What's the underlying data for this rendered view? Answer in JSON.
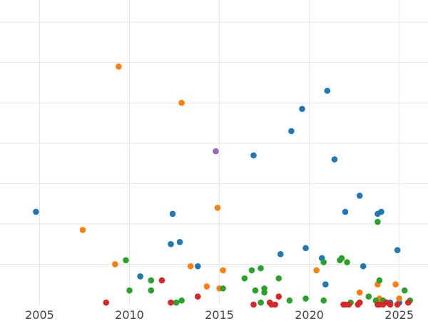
{
  "chart_data": {
    "type": "scatter",
    "title": "",
    "xlabel": "",
    "ylabel": "",
    "xlim": [
      2002.8,
      2026.6
    ],
    "ylim": [
      0,
      7.55
    ],
    "x_ticks": [
      {
        "value": 2005,
        "label": "2005"
      },
      {
        "value": 2010,
        "label": "2010"
      },
      {
        "value": 2015,
        "label": "2015"
      },
      {
        "value": 2020,
        "label": "2020"
      },
      {
        "value": 2025,
        "label": "2025"
      }
    ],
    "y_gridlines": [
      1,
      2,
      3,
      4,
      5,
      6,
      7
    ],
    "grid": true,
    "legend": null,
    "series": [
      {
        "color": "#1f77b4",
        "points": [
          [
            2004.8,
            2.3
          ],
          [
            2010.6,
            0.7
          ],
          [
            2012.3,
            1.5
          ],
          [
            2012.4,
            2.25
          ],
          [
            2012.8,
            1.55
          ],
          [
            2013.8,
            0.95
          ],
          [
            2016.9,
            3.7
          ],
          [
            2018.4,
            1.25
          ],
          [
            2019.0,
            4.3
          ],
          [
            2019.6,
            4.85
          ],
          [
            2019.8,
            1.4
          ],
          [
            2020.7,
            1.15
          ],
          [
            2020.9,
            0.5
          ],
          [
            2021.0,
            5.3
          ],
          [
            2021.4,
            3.6
          ],
          [
            2022.0,
            2.3
          ],
          [
            2022.8,
            2.7
          ],
          [
            2023.0,
            0.95
          ],
          [
            2023.8,
            2.25
          ],
          [
            2024.0,
            2.3
          ],
          [
            2024.9,
            1.35
          ],
          [
            2024.5,
            0.05
          ],
          [
            2025.0,
            0.05
          ]
        ]
      },
      {
        "color": "#ff7f0e",
        "points": [
          [
            2007.4,
            1.85
          ],
          [
            2009.2,
            1.0
          ],
          [
            2009.4,
            5.9
          ],
          [
            2012.9,
            5.0
          ],
          [
            2013.4,
            0.95
          ],
          [
            2014.3,
            0.45
          ],
          [
            2014.9,
            2.4
          ],
          [
            2015.0,
            0.4
          ],
          [
            2015.2,
            0.85
          ],
          [
            2020.4,
            0.85
          ],
          [
            2022.8,
            0.3
          ],
          [
            2023.8,
            0.5
          ],
          [
            2023.9,
            0.15
          ],
          [
            2024.8,
            0.5
          ],
          [
            2025.0,
            0.15
          ]
        ]
      },
      {
        "color": "#2ca02c",
        "points": [
          [
            2009.8,
            1.1
          ],
          [
            2010.0,
            0.35
          ],
          [
            2011.2,
            0.6
          ],
          [
            2011.2,
            0.35
          ],
          [
            2012.6,
            0.05
          ],
          [
            2012.9,
            0.1
          ],
          [
            2015.2,
            0.4
          ],
          [
            2016.4,
            0.65
          ],
          [
            2016.8,
            0.85
          ],
          [
            2017.0,
            0.35
          ],
          [
            2017.3,
            0.05
          ],
          [
            2017.3,
            0.9
          ],
          [
            2017.5,
            0.4
          ],
          [
            2017.5,
            0.3
          ],
          [
            2018.3,
            0.65
          ],
          [
            2018.9,
            0.1
          ],
          [
            2019.8,
            0.15
          ],
          [
            2020.8,
            0.1
          ],
          [
            2020.8,
            1.05
          ],
          [
            2021.7,
            1.1
          ],
          [
            2021.8,
            1.15
          ],
          [
            2022.1,
            1.05
          ],
          [
            2022.3,
            0.05
          ],
          [
            2022.8,
            0.05
          ],
          [
            2023.3,
            0.2
          ],
          [
            2023.7,
            0.1
          ],
          [
            2023.8,
            2.05
          ],
          [
            2023.9,
            0.6
          ],
          [
            2024.1,
            0.1
          ],
          [
            2025.3,
            0.35
          ],
          [
            2025.6,
            0.1
          ]
        ]
      },
      {
        "color": "#d62728",
        "points": [
          [
            2008.7,
            0.05
          ],
          [
            2011.8,
            0.6
          ],
          [
            2012.3,
            0.05
          ],
          [
            2013.8,
            0.2
          ],
          [
            2016.9,
            0.0
          ],
          [
            2017.8,
            0.05
          ],
          [
            2017.9,
            0.0
          ],
          [
            2018.1,
            0.0
          ],
          [
            2018.3,
            0.2
          ],
          [
            2021.9,
            0.0
          ],
          [
            2022.0,
            0.0
          ],
          [
            2022.2,
            0.0
          ],
          [
            2022.7,
            0.0
          ],
          [
            2022.8,
            0.05
          ],
          [
            2023.8,
            0.0
          ],
          [
            2023.9,
            0.0
          ],
          [
            2024.1,
            0.0
          ],
          [
            2024.3,
            0.05
          ],
          [
            2024.5,
            0.0
          ],
          [
            2024.9,
            0.0
          ],
          [
            2025.5,
            0.05
          ]
        ]
      },
      {
        "color": "#9467bd",
        "points": [
          [
            2014.8,
            3.8
          ]
        ]
      }
    ]
  }
}
